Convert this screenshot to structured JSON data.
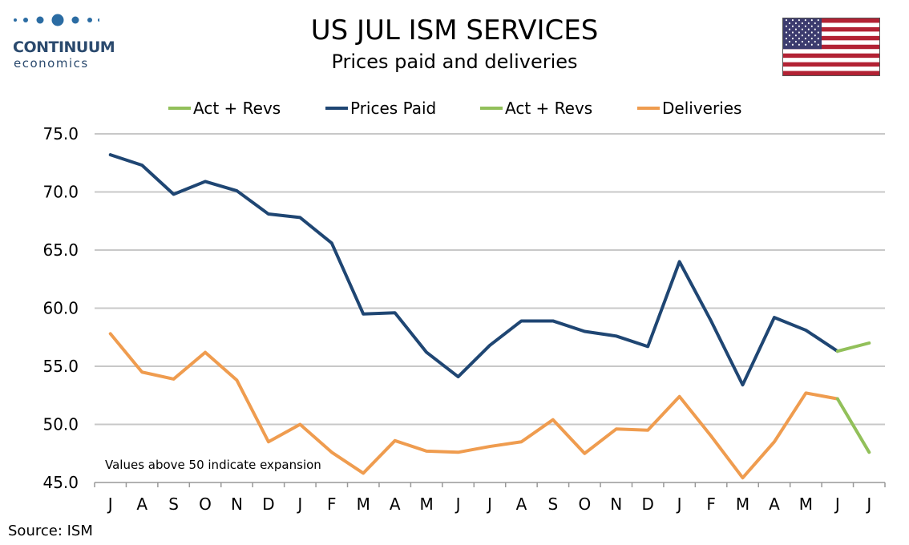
{
  "logo": {
    "line1": "CONTINUUM",
    "line2": "economics",
    "dot_color": "#2b6ca3"
  },
  "flag": {
    "icon": "us-flag-icon"
  },
  "source": "Source: ISM",
  "chart_data": {
    "type": "line",
    "title": "US JUL ISM SERVICES",
    "subtitle": "Prices paid and deliveries",
    "categories": [
      "J",
      "A",
      "S",
      "O",
      "N",
      "D",
      "J",
      "F",
      "M",
      "A",
      "M",
      "J",
      "J",
      "A",
      "S",
      "O",
      "N",
      "D",
      "J",
      "F",
      "M",
      "A",
      "M",
      "J",
      "J"
    ],
    "ylim": [
      45,
      75
    ],
    "yticks": [
      "45.0",
      "50.0",
      "55.0",
      "60.0",
      "65.0",
      "70.0",
      "75.0"
    ],
    "grid": true,
    "legend_position": "top",
    "annotation": "Values above 50 indicate expansion",
    "legend": [
      {
        "name": "Act + Revs",
        "color": "#92c05a"
      },
      {
        "name": "Prices Paid",
        "color": "#1f4673"
      },
      {
        "name": "Act + Revs",
        "color": "#92c05a"
      },
      {
        "name": "Deliveries",
        "color": "#ef9c4f"
      }
    ],
    "series": [
      {
        "name": "Prices Paid",
        "color": "#1f4673",
        "values": [
          73.2,
          72.3,
          69.8,
          70.9,
          70.1,
          68.1,
          67.8,
          65.6,
          59.5,
          59.6,
          56.2,
          54.1,
          56.8,
          58.9,
          58.9,
          58.0,
          57.6,
          56.7,
          64.0,
          58.9,
          53.4,
          59.2,
          58.1,
          56.3,
          null
        ]
      },
      {
        "name": "Act + Revs",
        "color": "#92c05a",
        "values": [
          null,
          null,
          null,
          null,
          null,
          null,
          null,
          null,
          null,
          null,
          null,
          null,
          null,
          null,
          null,
          null,
          null,
          null,
          null,
          null,
          null,
          null,
          null,
          56.3,
          57.0
        ]
      },
      {
        "name": "Deliveries",
        "color": "#ef9c4f",
        "values": [
          57.8,
          54.5,
          53.9,
          56.2,
          53.8,
          48.5,
          50.0,
          47.6,
          45.8,
          48.6,
          47.7,
          47.6,
          48.1,
          48.5,
          50.4,
          47.5,
          49.6,
          49.5,
          52.4,
          49.0,
          45.4,
          48.5,
          52.7,
          52.2,
          null
        ]
      },
      {
        "name": "Act + Revs",
        "color": "#92c05a",
        "values": [
          null,
          null,
          null,
          null,
          null,
          null,
          null,
          null,
          null,
          null,
          null,
          null,
          null,
          null,
          null,
          null,
          null,
          null,
          null,
          null,
          null,
          null,
          null,
          52.2,
          47.6
        ]
      }
    ]
  }
}
